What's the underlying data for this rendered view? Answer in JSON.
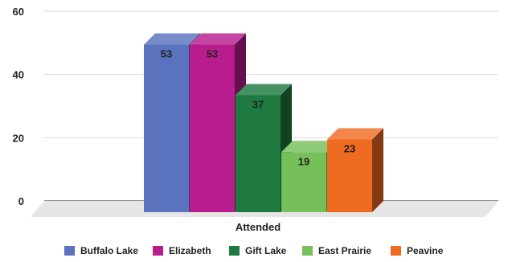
{
  "chart_data": {
    "type": "bar",
    "style": "3d-clustered-column",
    "categories": [
      "Attended"
    ],
    "series": [
      {
        "name": "Buffalo Lake",
        "values": [
          53
        ],
        "color": "#5b73be"
      },
      {
        "name": "Elizabeth",
        "values": [
          53
        ],
        "color": "#b81d8e"
      },
      {
        "name": "Gift Lake",
        "values": [
          37
        ],
        "color": "#1f7a3f"
      },
      {
        "name": "East Prairie",
        "values": [
          19
        ],
        "color": "#76c05a"
      },
      {
        "name": "Peavine",
        "values": [
          23
        ],
        "color": "#f06b22"
      }
    ],
    "ylim": [
      0,
      60
    ],
    "yticks": [
      0,
      20,
      40,
      60
    ],
    "grid": true,
    "data_labels": true,
    "legend_position": "bottom",
    "title": "",
    "xlabel": "",
    "ylabel": ""
  }
}
